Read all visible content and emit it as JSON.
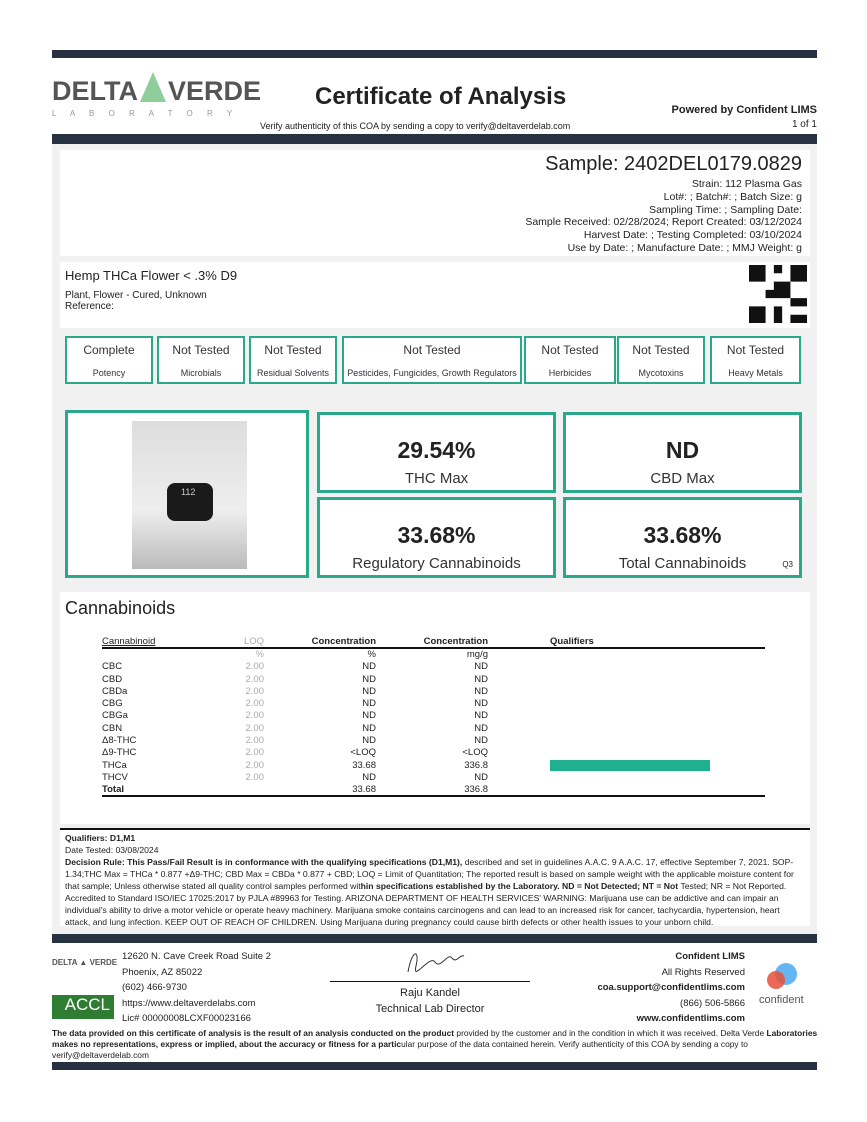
{
  "header": {
    "logo_main_left": "DELTA",
    "logo_main_right": "VERDE",
    "logo_sub": "L A B O R A T O R Y",
    "title": "Certificate of Analysis",
    "verify": "Verify authenticity of this COA by sending a copy to verify@deltaverdelab.com",
    "powered": "Powered by Confident LIMS",
    "page": "1 of 1"
  },
  "sample": {
    "id": "Sample: 2402DEL0179.0829",
    "lines": [
      "Strain: 112 Plasma Gas",
      "Lot#: ; Batch#: ; Batch Size:  g",
      "Sampling Time: ; Sampling Date: ",
      "Sample Received: 02/28/2024; Report Created: 03/12/2024",
      "Harvest Date: ; Testing Completed: 03/10/2024",
      "Use by Date: ; Manufacture Date: ; MMJ Weight: g"
    ]
  },
  "product": {
    "name": "Hemp THCa Flower < .3% D9",
    "type": "Plant, Flower - Cured, Unknown",
    "reference": "Reference:"
  },
  "status": [
    {
      "value": "Complete",
      "label": "Potency"
    },
    {
      "value": "Not Tested",
      "label": "Microbials"
    },
    {
      "value": "Not Tested",
      "label": "Residual Solvents"
    },
    {
      "value": "Not Tested",
      "label": "Pesticides, Fungicides, Growth Regulators"
    },
    {
      "value": "Not Tested",
      "label": "Herbicides"
    },
    {
      "value": "Not Tested",
      "label": "Mycotoxins"
    },
    {
      "value": "Not Tested",
      "label": "Heavy Metals"
    }
  ],
  "summary": {
    "thc_max": "29.54%",
    "thc_max_label": "THC Max",
    "cbd_max": "ND",
    "cbd_max_label": "CBD Max",
    "regulatory": "33.68%",
    "regulatory_label": "Regulatory Cannabinoids",
    "total": "33.68%",
    "total_label": "Total Cannabinoids",
    "q": "Q3",
    "jar_label": "112"
  },
  "cannabinoids": {
    "title": "Cannabinoids",
    "headers": [
      "Cannabinoid",
      "LOQ",
      "Concentration",
      "Concentration",
      "Qualifiers"
    ],
    "units": [
      "",
      "%",
      "%",
      "mg/g",
      ""
    ],
    "rows": [
      [
        "CBC",
        "2.00",
        "ND",
        "ND"
      ],
      [
        "CBD",
        "2.00",
        "ND",
        "ND"
      ],
      [
        "CBDa",
        "2.00",
        "ND",
        "ND"
      ],
      [
        "CBG",
        "2.00",
        "ND",
        "ND"
      ],
      [
        "CBGa",
        "2.00",
        "ND",
        "ND"
      ],
      [
        "CBN",
        "2.00",
        "ND",
        "ND"
      ],
      [
        "Δ8-THC",
        "2.00",
        "ND",
        "ND"
      ],
      [
        "Δ9-THC",
        "2.00",
        "<LOQ",
        "<LOQ"
      ],
      [
        "THCa",
        "2.00",
        "33.68",
        "336.8"
      ],
      [
        "THCV",
        "2.00",
        "ND",
        "ND"
      ]
    ],
    "total": [
      "Total",
      "",
      "33.68",
      "336.8"
    ],
    "accent": "#1fb08f"
  },
  "notes": {
    "qualifiers": "Qualifiers: D1,M1",
    "date_tested": "Date Tested: 03/08/2024",
    "decision_bold": "Decision Rule: This Pass/Fail Result is in conformance with the qualifying specifications (D1,M1), ",
    "decision_1": "described and set in guidelines A.A.C. 9 A.A.C. 17, effective September 7, 2021. SOP-1.34;THC Max = THCa * 0.877 +Δ9-THC; CBD Max = CBDa * 0.877 + CBD; LOQ = Limit of Quantitation; The reported result is based on sample weight with the applicable moisture content for that sample; Unless otherwise stated all quality control samples performed wit",
    "decision_bold2": "hin specifications established by the Laboratory. ND = Not Detected; NT = Not ",
    "decision_2": "Tested; NR = Not Reported. Accredited to Standard ISO/IEC 17025:2017 by PJLA #89963 for Testing. ARIZONA DEPARTMENT OF HEALTH SERVICES' WARNING: Marijuana use can be addictive and can impair an individual's ability to drive a motor vehicle or operate heavy machinery. Marijuana smoke contains carcinogens and can lead to an increased risk for cancer, tachycardia, hypertension, heart attack, and lung infection. KEEP OUT OF REACH OF CHILDREN. Using Marijuana during pregnancy could cause birth defects or other health issues to your unborn child."
  },
  "footer": {
    "address": [
      "12620 N. Cave Creek Road Suite 2",
      "Phoenix, AZ 85022",
      "(602) 466-9730",
      "https://www.deltaverdelabs.com",
      "Lic# 00000008LCXF00023166"
    ],
    "accl": "ACCL",
    "signer": "Raju Kandel",
    "signer_title": "Technical Lab Director",
    "right": [
      "Confident LIMS",
      "All Rights Reserved",
      "coa.support@confidentlims.com",
      "(866) 506-5866",
      "www.confidentlims.com"
    ],
    "confident_logo": "confident",
    "disclaimer_bold": "The data provided on this certificate of analysis is the result of an analysis conducted on the product ",
    "disclaimer_1": "provided by the customer and in the condition in which it was received. Delta Verde ",
    "disclaimer_bold2": "Laboratories makes no representations, express or implied, about the accuracy or fitness for a partic",
    "disclaimer_2": "ular purpose of the data contained herein. Verify authenticity of this COA by sending a copy to verify@deltaverdelab.com"
  }
}
